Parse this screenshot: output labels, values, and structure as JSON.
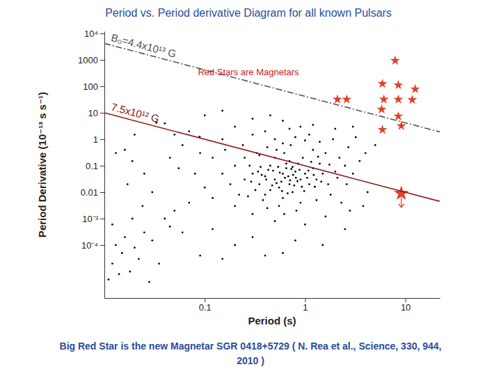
{
  "chart_data": {
    "type": "scatter",
    "title": "Period vs. Period derivative Diagram for all known Pulsars",
    "annotation": "Red Stars are Magnetars",
    "caption": [
      "Big Red Star is the new Magnetar SGR 0418+5729 ( N. Rea et al., Science, 330, 944,",
      "2010 )"
    ],
    "x_label": "Period (s)",
    "y_label": "Period Derivative (10⁻¹³ s s⁻¹)",
    "log": true,
    "grid": false,
    "xlim": [
      0.01,
      22
    ],
    "ylim": [
      1e-06,
      12000
    ],
    "xticks": [
      0.1,
      1,
      10
    ],
    "yticks": [
      {
        "value": 10000,
        "label": "10⁴"
      },
      1000,
      100,
      10,
      1,
      0.1,
      0.01,
      {
        "value": 0.001,
        "label": "10⁻³"
      },
      {
        "value": 0.0001,
        "label": "10⁻⁴"
      }
    ],
    "series": [
      {
        "type": "scatter",
        "color": "#000000",
        "marker": "dot",
        "x": [
          0.5,
          0.6,
          0.7,
          0.4,
          0.8,
          0.55,
          0.65,
          0.9,
          1.0,
          1.1,
          0.45,
          0.35,
          0.3,
          0.75,
          0.85,
          1.2,
          1.3,
          0.5,
          0.6,
          0.4,
          0.7,
          0.95,
          1.5,
          1.4,
          1.7,
          2.0,
          0.25,
          0.28,
          0.33,
          0.42,
          0.52,
          0.62,
          0.72,
          0.8,
          1.0,
          1.2,
          1.6,
          2.2,
          2.5,
          3.0,
          3.5,
          1.8,
          2.3,
          1.3,
          0.9,
          0.55,
          0.38,
          0.22,
          0.18,
          0.2,
          0.15,
          0.12,
          0.16,
          0.24,
          0.3,
          0.4,
          0.5,
          0.6,
          0.7,
          0.9,
          1.1,
          1.4,
          1.9,
          2.7,
          4,
          5,
          3.2,
          0.45,
          0.58,
          0.68,
          0.78,
          0.88,
          0.98,
          1.05,
          1.15,
          1.25,
          0.48,
          0.36,
          0.32,
          0.27,
          0.42,
          0.62,
          0.82,
          1.6,
          2.8,
          4.2,
          3.8,
          0.5,
          1,
          0.3,
          0.2,
          0.12,
          0.1,
          0.08,
          0.09,
          0.06,
          0.05,
          0.04,
          0.07,
          0.1,
          0.15,
          0.2,
          0.033,
          0.089,
          0.3,
          0.45,
          0.15,
          0.6,
          1.2,
          2,
          3,
          0.25,
          0.35,
          0.65,
          0.75,
          1.35,
          1.75,
          2.1,
          2.6,
          0.56,
          0.63,
          0.71,
          0.52,
          0.47,
          0.59,
          0.67,
          0.76,
          0.84,
          0.93,
          1.08,
          0.41,
          0.37,
          0.43,
          0.54,
          0.73,
          0.81,
          1.22,
          1.45,
          0.29,
          0.34,
          0.012,
          0.015,
          0.018,
          0.022,
          0.013,
          0.016,
          0.02,
          0.025,
          0.03,
          0.011,
          0.014,
          0.028,
          0.035,
          0.045,
          0.05,
          0.04,
          0.06,
          0.07,
          0.012,
          0.019,
          0.024,
          0.03,
          0.017,
          0.025,
          0.013,
          0.02,
          0.09,
          0.15,
          0.2,
          0.12,
          0.3,
          0.6,
          1.5,
          2.5,
          0.8,
          0.4,
          0.016,
          0.019,
          0.045,
          0.055
        ],
        "values": [
          0.03,
          0.05,
          0.02,
          0.04,
          0.06,
          0.015,
          0.08,
          0.03,
          0.05,
          0.02,
          0.1,
          0.02,
          0.05,
          0.01,
          0.12,
          0.08,
          0.03,
          0.2,
          0.006,
          0.008,
          0.15,
          0.2,
          0.05,
          0.12,
          0.02,
          0.06,
          0.03,
          0.1,
          0.3,
          0.5,
          0.4,
          0.3,
          0.6,
          1.2,
          0.9,
          0.4,
          0.3,
          0.2,
          0.1,
          0.05,
          0.15,
          0.008,
          0.004,
          0.005,
          0.004,
          0.003,
          0.005,
          0.008,
          0.02,
          0.1,
          0.05,
          0.2,
          0.4,
          0.6,
          1.5,
          2,
          1,
          0.7,
          2.5,
          3,
          1.5,
          0.8,
          1,
          0.5,
          0.3,
          0.6,
          1.2,
          0.012,
          0.025,
          0.04,
          0.018,
          0.07,
          0.011,
          0.035,
          0.14,
          0.016,
          0.065,
          0.09,
          0.012,
          0.007,
          0.0025,
          0.0015,
          0.002,
          0.0012,
          0.002,
          0.01,
          0.003,
          0.0008,
          0.0006,
          0.0015,
          0.003,
          0.006,
          0.015,
          0.05,
          0.3,
          0.6,
          1.5,
          4,
          2,
          8,
          1,
          3,
          4.2,
          1.25,
          6,
          8,
          12,
          5,
          3.5,
          2.5,
          3,
          0.2,
          0.25,
          0.12,
          0.09,
          0.22,
          0.11,
          0.035,
          0.02,
          0.055,
          0.035,
          0.028,
          0.022,
          0.018,
          0.011,
          0.009,
          0.045,
          0.026,
          0.016,
          0.065,
          0.03,
          0.045,
          0.07,
          0.09,
          0.075,
          0.035,
          0.045,
          0.025,
          0.025,
          0.06,
          2e-05,
          5e-05,
          1e-05,
          3e-05,
          0.0001,
          0.0002,
          8e-05,
          0.0003,
          0.00015,
          5e-06,
          8e-06,
          4e-06,
          2e-05,
          0.0005,
          0.002,
          0.001,
          0.0003,
          0.004,
          0.0006,
          0.001,
          0.003,
          0.01,
          0.02,
          0.05,
          0.3,
          1.5,
          4e-05,
          3e-05,
          0.0001,
          0.0004,
          0.0002,
          5e-05,
          0.0001,
          0.0004,
          0.00015,
          4e-05,
          0.4,
          0.15,
          0.2,
          0.08
        ]
      },
      {
        "type": "scatter",
        "color": "#e0402a",
        "marker": "star",
        "x": [
          7.9,
          2.1,
          2.6,
          5.9,
          8.5,
          12.5,
          6.1,
          8.5,
          11.7,
          5.8,
          8.5,
          5.9,
          9.1
        ],
        "values": [
          940,
          32,
          32,
          125,
          112,
          79,
          32,
          32,
          31,
          13.5,
          7.4,
          2.3,
          3.2
        ]
      },
      {
        "type": "scatter",
        "color": "#e0402a",
        "marker": "upper-limit",
        "x": [
          9.1
        ],
        "values": [
          0.009
        ]
      },
      {
        "type": "line",
        "color": "#555555",
        "line_style": "dashdot",
        "label": "B₀=4.4x10¹³ G",
        "x": [
          0.01,
          22
        ],
        "values": [
          4200,
          1.9
        ]
      },
      {
        "type": "line",
        "color": "#8b1a1a",
        "line_style": "solid",
        "label": "7.5x10¹² G",
        "x": [
          0.01,
          22
        ],
        "values": [
          10,
          0.0045
        ]
      }
    ]
  }
}
